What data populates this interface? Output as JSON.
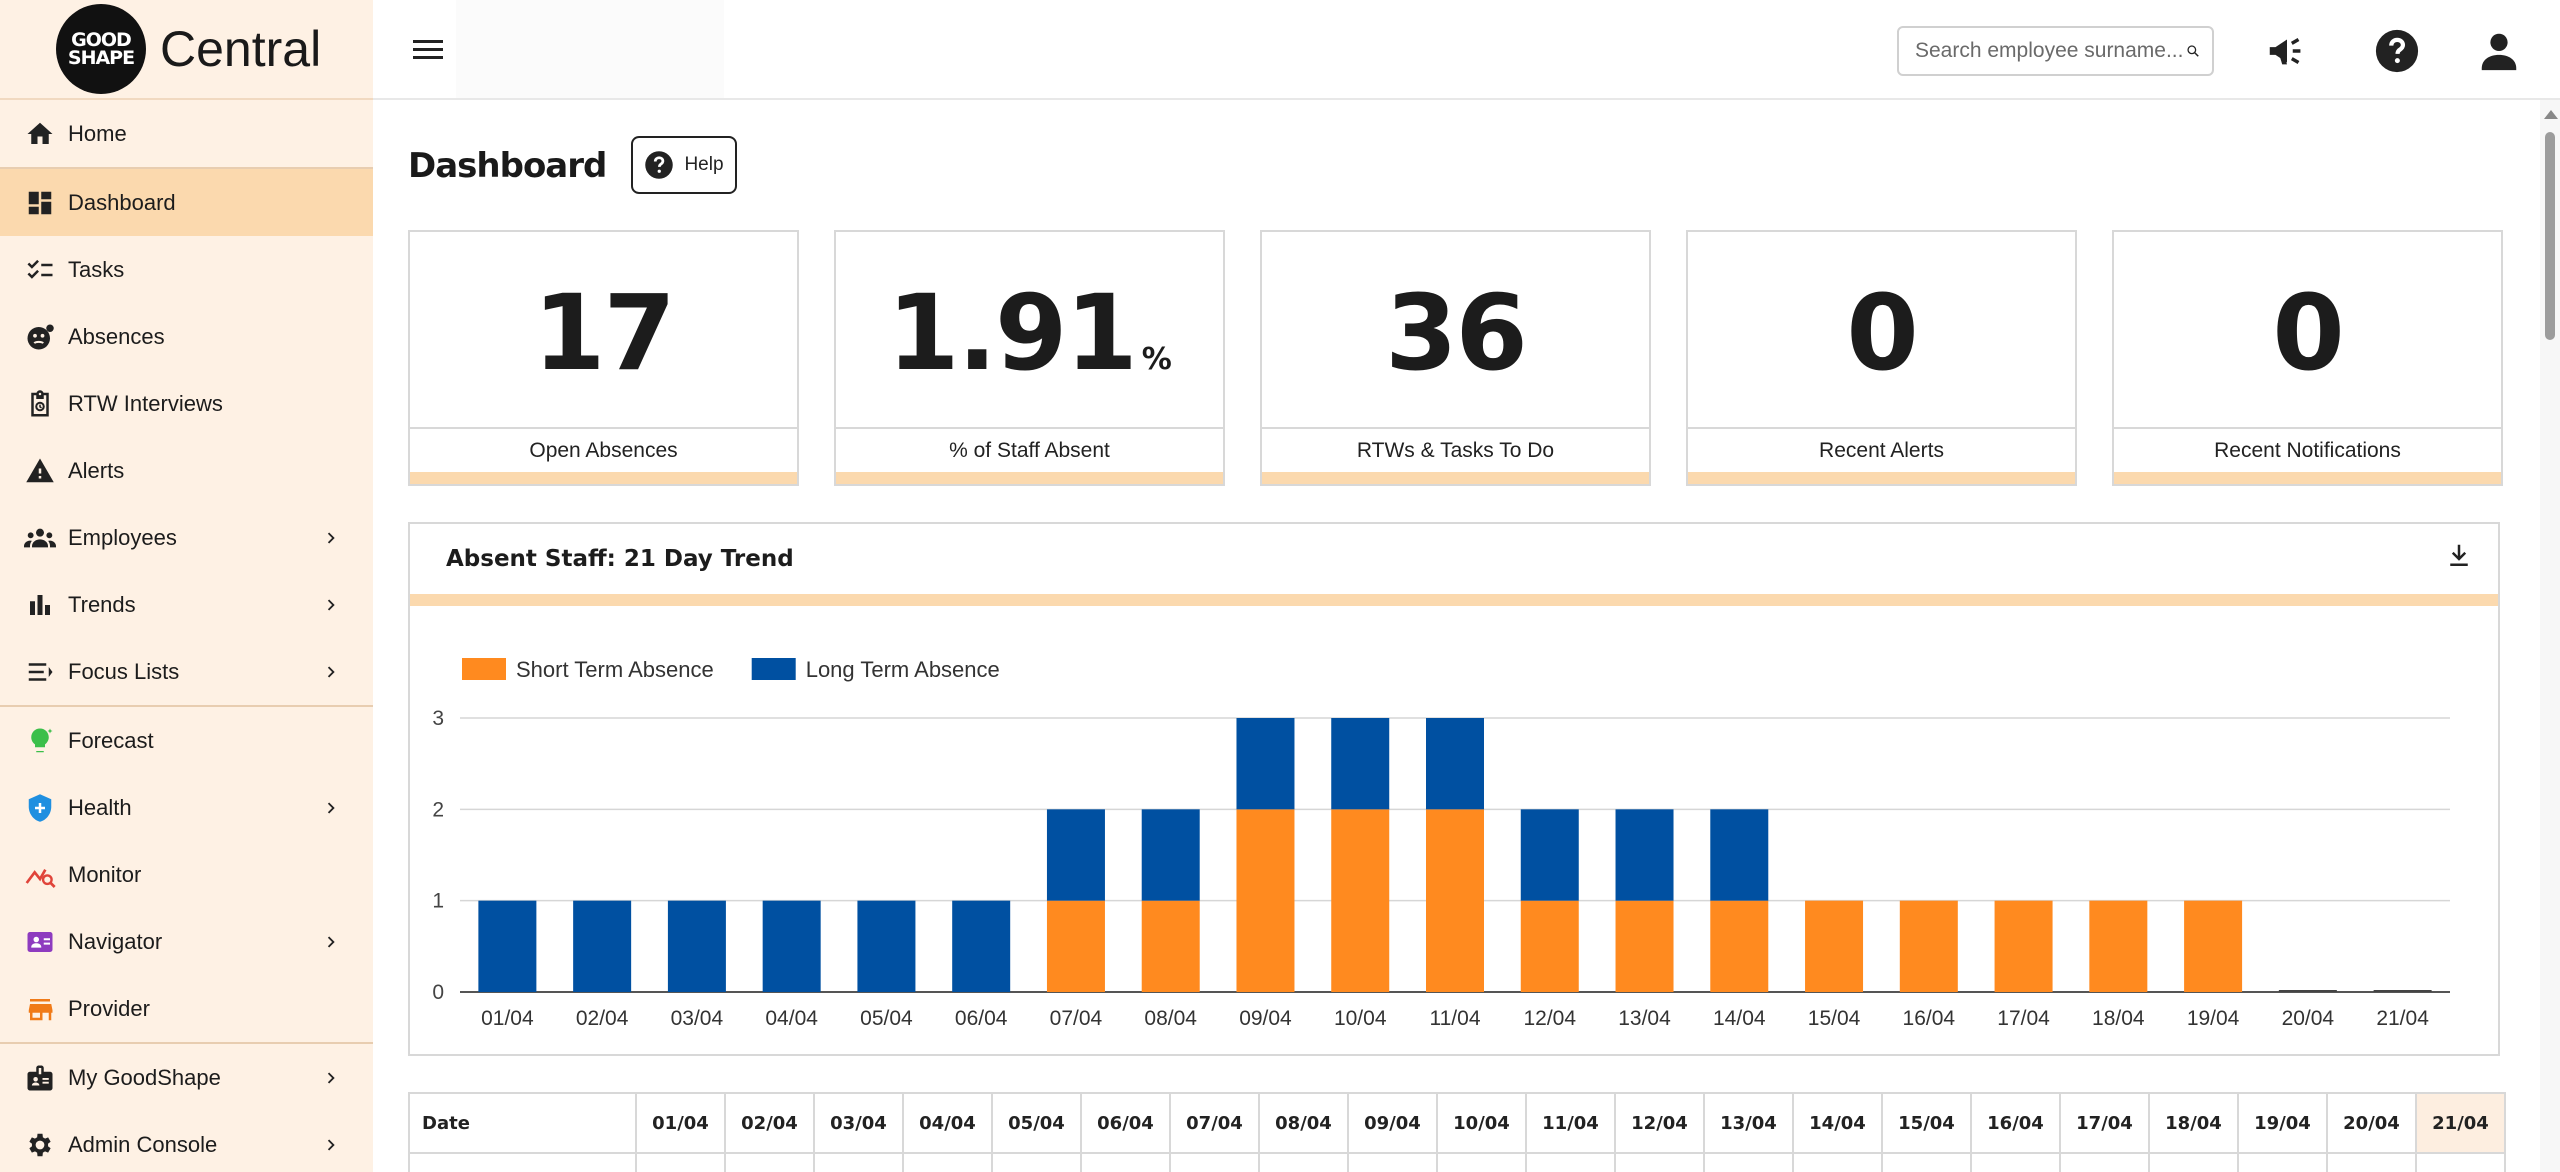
{
  "brand": {
    "logo_line1": "GOOD",
    "logo_line2": "SHAPE",
    "name": "Central"
  },
  "sidebar": {
    "items": [
      {
        "label": "Home",
        "icon": "home-icon"
      },
      {
        "label": "Dashboard",
        "icon": "dashboard-icon",
        "active": true
      },
      {
        "label": "Tasks",
        "icon": "tasks-icon"
      },
      {
        "label": "Absences",
        "icon": "absences-icon"
      },
      {
        "label": "RTW Interviews",
        "icon": "clipboard-icon"
      },
      {
        "label": "Alerts",
        "icon": "warning-icon"
      },
      {
        "label": "Employees",
        "icon": "people-icon",
        "expandable": true
      },
      {
        "label": "Trends",
        "icon": "bar-chart-icon",
        "expandable": true
      },
      {
        "label": "Focus Lists",
        "icon": "list-icon",
        "expandable": true
      },
      {
        "label": "Forecast",
        "icon": "lightbulb-icon"
      },
      {
        "label": "Health",
        "icon": "shield-icon",
        "expandable": true
      },
      {
        "label": "Monitor",
        "icon": "monitor-icon"
      },
      {
        "label": "Navigator",
        "icon": "navigator-icon",
        "expandable": true
      },
      {
        "label": "Provider",
        "icon": "store-icon"
      },
      {
        "label": "My GoodShape",
        "icon": "badge-icon",
        "expandable": true
      },
      {
        "label": "Admin Console",
        "icon": "gear-icon",
        "expandable": true
      }
    ]
  },
  "header": {
    "search_placeholder": "Search employee surname..."
  },
  "page": {
    "title": "Dashboard",
    "help_label": "Help"
  },
  "kpis": [
    {
      "value": "17",
      "unit": "",
      "label": "Open Absences"
    },
    {
      "value": "1.91",
      "unit": "%",
      "label": "% of Staff Absent"
    },
    {
      "value": "36",
      "unit": "",
      "label": "RTWs & Tasks To Do"
    },
    {
      "value": "0",
      "unit": "",
      "label": "Recent Alerts"
    },
    {
      "value": "0",
      "unit": "",
      "label": "Recent Notifications"
    }
  ],
  "colors": {
    "accent": "#fbd9ae",
    "short_term": "#ff8a1f",
    "long_term": "#0050a1"
  },
  "chart_panel": {
    "title": "Absent Staff: 21 Day Trend"
  },
  "chart_data": {
    "type": "bar",
    "stacked": true,
    "title": "Absent Staff: 21 Day Trend",
    "categories": [
      "01/04",
      "02/04",
      "03/04",
      "04/04",
      "05/04",
      "06/04",
      "07/04",
      "08/04",
      "09/04",
      "10/04",
      "11/04",
      "12/04",
      "13/04",
      "14/04",
      "15/04",
      "16/04",
      "17/04",
      "18/04",
      "19/04",
      "20/04",
      "21/04"
    ],
    "series": [
      {
        "name": "Short Term Absence",
        "color": "#ff8a1f",
        "values": [
          0,
          0,
          0,
          0,
          0,
          0,
          1,
          1,
          2,
          2,
          2,
          1,
          1,
          1,
          1,
          1,
          1,
          1,
          1,
          0,
          0
        ]
      },
      {
        "name": "Long Term Absence",
        "color": "#0050a1",
        "values": [
          1,
          1,
          1,
          1,
          1,
          1,
          1,
          1,
          1,
          1,
          1,
          1,
          1,
          1,
          0,
          0,
          0,
          0,
          0,
          0,
          0
        ]
      }
    ],
    "ylim": [
      0,
      3
    ],
    "yticks": [
      0,
      1,
      2,
      3
    ],
    "grid": true,
    "legend": "top-left"
  },
  "table": {
    "first_header": "Date",
    "columns": [
      "01/04",
      "02/04",
      "03/04",
      "04/04",
      "05/04",
      "06/04",
      "07/04",
      "08/04",
      "09/04",
      "10/04",
      "11/04",
      "12/04",
      "13/04",
      "14/04",
      "15/04",
      "16/04",
      "17/04",
      "18/04",
      "19/04",
      "20/04",
      "21/04"
    ]
  }
}
